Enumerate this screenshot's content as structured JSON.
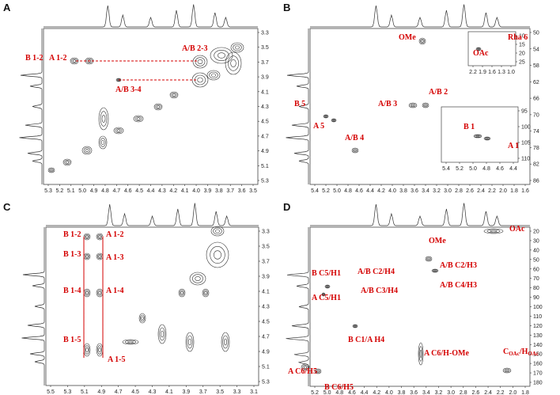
{
  "panels": [
    {
      "letter": "A",
      "xticks": [
        "5.3",
        "5.2",
        "5.1",
        "5.0",
        "4.9",
        "4.8",
        "4.7",
        "4.6",
        "4.5",
        "4.4",
        "4.3",
        "4.2",
        "4.1",
        "4.0",
        "3.9",
        "3.8",
        "3.7",
        "3.6",
        "3.5"
      ],
      "yticks": [
        "3.3",
        "3.5",
        "3.7",
        "3.9",
        "4.1",
        "4.3",
        "4.5",
        "4.7",
        "4.9",
        "5.1",
        "5.3"
      ],
      "labels": [
        "B 1-2",
        "A 1-2",
        "A/B 2-3",
        "A/B 3-4"
      ]
    },
    {
      "letter": "B",
      "xticks": [
        "5.4",
        "5.2",
        "5.0",
        "4.8",
        "4.6",
        "4.4",
        "4.2",
        "4.0",
        "3.8",
        "3.6",
        "3.4",
        "3.2",
        "3.0",
        "2.8",
        "2.6",
        "2.4",
        "2.2",
        "2.0",
        "1.8",
        "1.6"
      ],
      "yticks": [
        "50",
        "54",
        "58",
        "62",
        "66",
        "70",
        "74",
        "78",
        "82",
        "86"
      ],
      "labels": [
        "OMe",
        "A/B 2",
        "A/B  3",
        "B 5",
        "A 5",
        "A/B 4"
      ],
      "insets": [
        {
          "xticks": [
            "2.2",
            "1.9",
            "1.6",
            "1.3",
            "1.0"
          ],
          "yticks": [
            "10",
            "15",
            "20",
            "25"
          ],
          "labels": [
            "OAc",
            "Rha 6"
          ]
        },
        {
          "xticks": [
            "5.4",
            "5.2",
            "5.0",
            "4.8",
            "4.6",
            "4.4"
          ],
          "yticks": [
            "95",
            "100",
            "105",
            "110"
          ],
          "labels": [
            "B 1",
            "A 1"
          ]
        }
      ]
    },
    {
      "letter": "C",
      "xticks": [
        "5.5",
        "5.3",
        "5.1",
        "4.9",
        "4.7",
        "4.5",
        "4.3",
        "4.1",
        "3.9",
        "3.7",
        "3.5",
        "3.3",
        "3.1"
      ],
      "yticks": [
        "3.3",
        "3.5",
        "3.7",
        "3.9",
        "4.1",
        "4.3",
        "4.5",
        "4.7",
        "4.9",
        "5.1",
        "5.3"
      ],
      "labels": [
        "B 1-2",
        "A 1-2",
        "B 1-3",
        "A 1-3",
        "B 1-4",
        "A 1-4",
        "B 1-5",
        "A 1-5"
      ]
    },
    {
      "letter": "D",
      "xticks": [
        "5.2",
        "5.0",
        "4.8",
        "4.6",
        "4.4",
        "4.2",
        "4.0",
        "3.8",
        "3.6",
        "3.4",
        "3.2",
        "3.0",
        "2.8",
        "2.6",
        "2.4",
        "2.2",
        "2.0",
        "1.8"
      ],
      "yticks": [
        "20",
        "30",
        "40",
        "50",
        "60",
        "70",
        "80",
        "90",
        "100",
        "110",
        "120",
        "130",
        "140",
        "150",
        "160",
        "170",
        "180"
      ],
      "labels": [
        "OAc",
        "OMe",
        "B C5/H1",
        "A/B C2/H4",
        "A/B C2/H3",
        "A/B C3/H4",
        "A/B C4/H3",
        "A C5/H1",
        "B C1/A H4",
        "A C6/H5",
        "B C6/H5",
        "A C6/H-OMe",
        {
          "parts": [
            "C",
            "OAc",
            "/H",
            "OAc"
          ]
        }
      ]
    }
  ]
}
